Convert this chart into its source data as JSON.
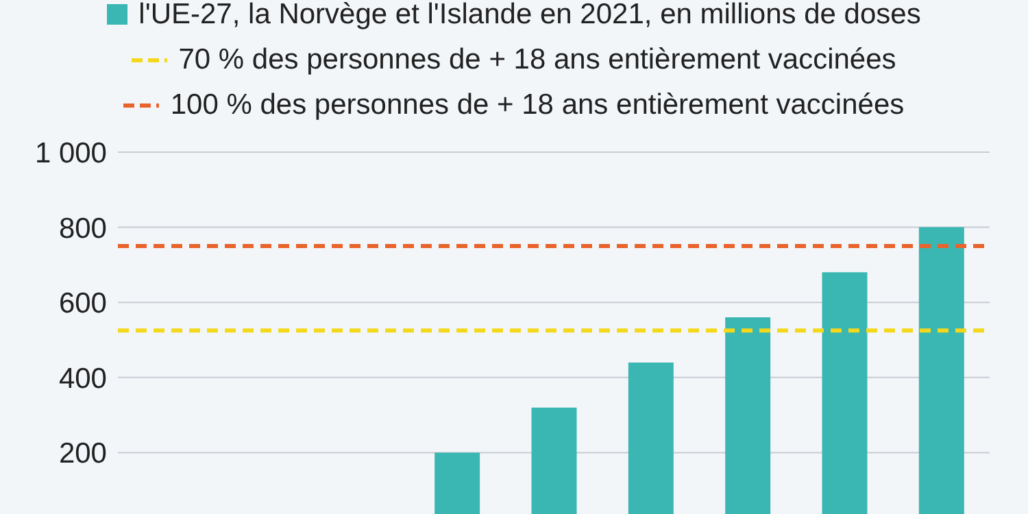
{
  "chart_data": {
    "type": "bar",
    "categories": [
      null,
      null,
      null,
      null,
      null,
      null,
      null,
      null,
      null
    ],
    "series": [
      {
        "name": "l'UE-27, la Norvège et l'Islande en 2021, en millions de doses",
        "color": "#3ab7b2",
        "values": [
          null,
          null,
          null,
          200,
          320,
          440,
          560,
          680,
          800
        ]
      }
    ],
    "ylim": [
      0,
      1000
    ],
    "yticks": [
      200,
      400,
      600,
      800,
      {
        "value": 1000,
        "label": "1 000"
      }
    ],
    "grid": "y",
    "legend": "top",
    "tick_labels": "y",
    "ref_lines": [
      {
        "axis": "y",
        "value": 525,
        "label": "70 % des personnes de + 18 ans entièrement vaccinées",
        "color": "#f4d81c",
        "line_style": "dashed"
      },
      {
        "axis": "y",
        "value": 750,
        "label": "100 % des personnes de + 18 ans entièrement vaccinées",
        "color": "#e8642c",
        "line_style": "dashed"
      }
    ]
  }
}
